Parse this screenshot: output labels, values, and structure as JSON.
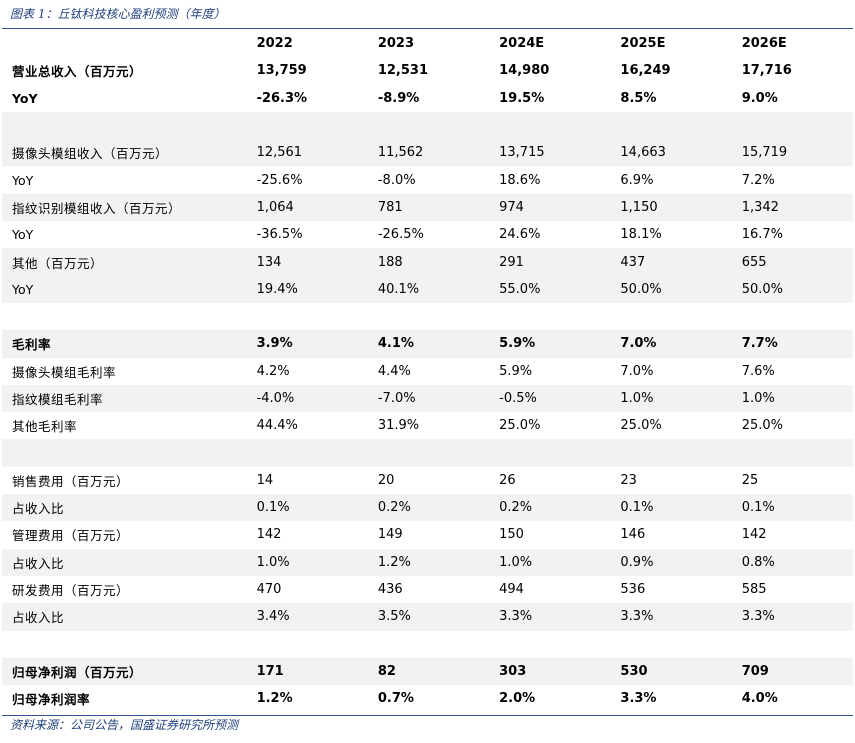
{
  "caption": "图表 1：丘钛科技核心盈利预测（年度）",
  "source": "资料来源：公司公告，国盛证券研究所预测",
  "header": [
    "",
    "2022",
    "2023",
    "2024E",
    "2025E",
    "2026E"
  ],
  "rows": [
    {
      "label": "营业总收入（百万元）",
      "values": [
        "13,759",
        "12,531",
        "14,980",
        "16,249",
        "17,716"
      ],
      "bold": true,
      "shade": false
    },
    {
      "label": "YoY",
      "values": [
        "-26.3%",
        "-8.9%",
        "19.5%",
        "8.5%",
        "9.0%"
      ],
      "bold": true,
      "shade": false
    },
    {
      "label": "",
      "values": [
        "",
        "",
        "",
        "",
        ""
      ],
      "bold": false,
      "shade": true
    },
    {
      "label": "摄像头模组收入（百万元）",
      "values": [
        "12,561",
        "11,562",
        "13,715",
        "14,663",
        "15,719"
      ],
      "bold": false,
      "shade": true
    },
    {
      "label": "YoY",
      "values": [
        "-25.6%",
        "-8.0%",
        "18.6%",
        "6.9%",
        "7.2%"
      ],
      "bold": false,
      "shade": false
    },
    {
      "label": "指纹识别模组收入（百万元）",
      "values": [
        "1,064",
        "781",
        "974",
        "1,150",
        "1,342"
      ],
      "bold": false,
      "shade": true
    },
    {
      "label": "YoY",
      "values": [
        "-36.5%",
        "-26.5%",
        "24.6%",
        "18.1%",
        "16.7%"
      ],
      "bold": false,
      "shade": false
    },
    {
      "label": "其他（百万元）",
      "values": [
        "134",
        "188",
        "291",
        "437",
        "655"
      ],
      "bold": false,
      "shade": true
    },
    {
      "label": "YoY",
      "values": [
        "19.4%",
        "40.1%",
        "55.0%",
        "50.0%",
        "50.0%"
      ],
      "bold": false,
      "shade": true
    },
    {
      "label": "",
      "values": [
        "",
        "",
        "",
        "",
        ""
      ],
      "bold": false,
      "shade": false
    },
    {
      "label": "毛利率",
      "values": [
        "3.9%",
        "4.1%",
        "5.9%",
        "7.0%",
        "7.7%"
      ],
      "bold": true,
      "shade": true
    },
    {
      "label": "摄像头模组毛利率",
      "values": [
        "4.2%",
        "4.4%",
        "5.9%",
        "7.0%",
        "7.6%"
      ],
      "bold": false,
      "shade": false
    },
    {
      "label": "指纹模组毛利率",
      "values": [
        "-4.0%",
        "-7.0%",
        "-0.5%",
        "1.0%",
        "1.0%"
      ],
      "bold": false,
      "shade": true
    },
    {
      "label": "其他毛利率",
      "values": [
        "44.4%",
        "31.9%",
        "25.0%",
        "25.0%",
        "25.0%"
      ],
      "bold": false,
      "shade": false
    },
    {
      "label": "",
      "values": [
        "",
        "",
        "",
        "",
        ""
      ],
      "bold": false,
      "shade": true
    },
    {
      "label": "销售费用（百万元）",
      "values": [
        "14",
        "20",
        "26",
        "23",
        "25"
      ],
      "bold": false,
      "shade": false
    },
    {
      "label": "占收入比",
      "values": [
        "0.1%",
        "0.2%",
        "0.2%",
        "0.1%",
        "0.1%"
      ],
      "bold": false,
      "shade": true
    },
    {
      "label": "管理费用（百万元）",
      "values": [
        "142",
        "149",
        "150",
        "146",
        "142"
      ],
      "bold": false,
      "shade": false
    },
    {
      "label": "占收入比",
      "values": [
        "1.0%",
        "1.2%",
        "1.0%",
        "0.9%",
        "0.8%"
      ],
      "bold": false,
      "shade": true
    },
    {
      "label": "研发费用（百万元）",
      "values": [
        "470",
        "436",
        "494",
        "536",
        "585"
      ],
      "bold": false,
      "shade": false
    },
    {
      "label": "占收入比",
      "values": [
        "3.4%",
        "3.5%",
        "3.3%",
        "3.3%",
        "3.3%"
      ],
      "bold": false,
      "shade": true
    },
    {
      "label": "",
      "values": [
        "",
        "",
        "",
        "",
        ""
      ],
      "bold": false,
      "shade": false
    },
    {
      "label": "归母净利润（百万元）",
      "values": [
        "171",
        "82",
        "303",
        "530",
        "709"
      ],
      "bold": true,
      "shade": true
    },
    {
      "label": "归母净利润率",
      "values": [
        "1.2%",
        "0.7%",
        "2.0%",
        "3.3%",
        "4.0%"
      ],
      "bold": true,
      "shade": false
    }
  ]
}
